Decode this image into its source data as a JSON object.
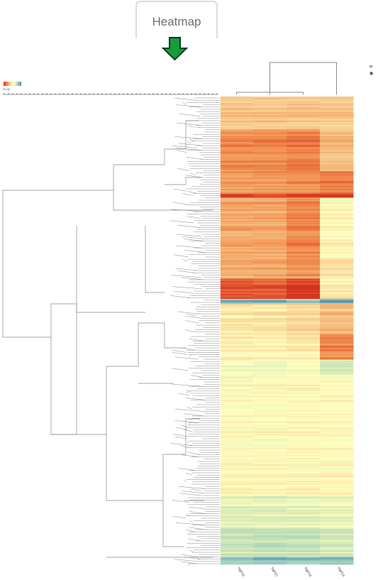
{
  "tab": {
    "label": "Heatmap"
  },
  "colors": {
    "arrow_fill": "#179b3c",
    "arrow_stroke": "#0a3d1f",
    "dendrogram": "#888888",
    "border": "#dcdcdc",
    "palette": [
      "#d7301f",
      "#f08a4b",
      "#f7c98c",
      "#ffffbf",
      "#d8ebb5",
      "#a6d1c0",
      "#4a8fb3"
    ]
  },
  "legend": {
    "value": "20.32"
  },
  "toolbar": {
    "icons": [
      "save-icon",
      "pin-icon"
    ]
  },
  "chart_data": {
    "type": "heatmap",
    "columns": [
      "logFC2",
      "logFC1",
      "logFC3",
      "logFC4"
    ],
    "rows": "unlabeled gene rows (hierarchically clustered)",
    "row_dendrogram": true,
    "column_dendrogram": true,
    "color_scale": [
      "#d7301f",
      "#f08a4b",
      "#f7c98c",
      "#ffffbf",
      "#d8ebb5",
      "#a6d1c0",
      "#4a8fb3"
    ],
    "row_blocks": [
      {
        "rows": 26,
        "values": [
          1.5,
          1.5,
          1.5,
          1.5
        ]
      },
      {
        "rows": 33,
        "values": [
          2.7,
          2.8,
          3.0,
          1.7
        ]
      },
      {
        "rows": 18,
        "values": [
          2.4,
          2.5,
          2.6,
          3.0
        ]
      },
      {
        "rows": 3,
        "values": [
          4.0,
          4.0,
          4.2,
          4.2
        ]
      },
      {
        "rows": 48,
        "values": [
          2.2,
          2.2,
          2.8,
          0.2
        ]
      },
      {
        "rows": 16,
        "values": [
          2.0,
          2.1,
          2.5,
          0.8
        ]
      },
      {
        "rows": 16,
        "values": [
          3.6,
          3.5,
          4.1,
          0.5
        ]
      },
      {
        "rows": 4,
        "values": [
          -2.4,
          -2.4,
          -2.0,
          -2.6
        ]
      },
      {
        "rows": 24,
        "values": [
          0.6,
          0.6,
          0.9,
          1.6
        ]
      },
      {
        "rows": 20,
        "values": [
          0.3,
          0.3,
          0.5,
          2.8
        ]
      },
      {
        "rows": 12,
        "values": [
          -0.4,
          -0.4,
          -0.2,
          -1.2
        ]
      },
      {
        "rows": 96,
        "values": [
          0.1,
          0.1,
          0.2,
          0.1
        ]
      },
      {
        "rows": 26,
        "values": [
          -0.7,
          -0.7,
          -0.6,
          -0.5
        ]
      },
      {
        "rows": 22,
        "values": [
          -1.2,
          -1.3,
          -1.2,
          -1.0
        ]
      },
      {
        "rows": 6,
        "values": [
          -2.2,
          -2.3,
          -2.1,
          -2.3
        ]
      }
    ]
  }
}
